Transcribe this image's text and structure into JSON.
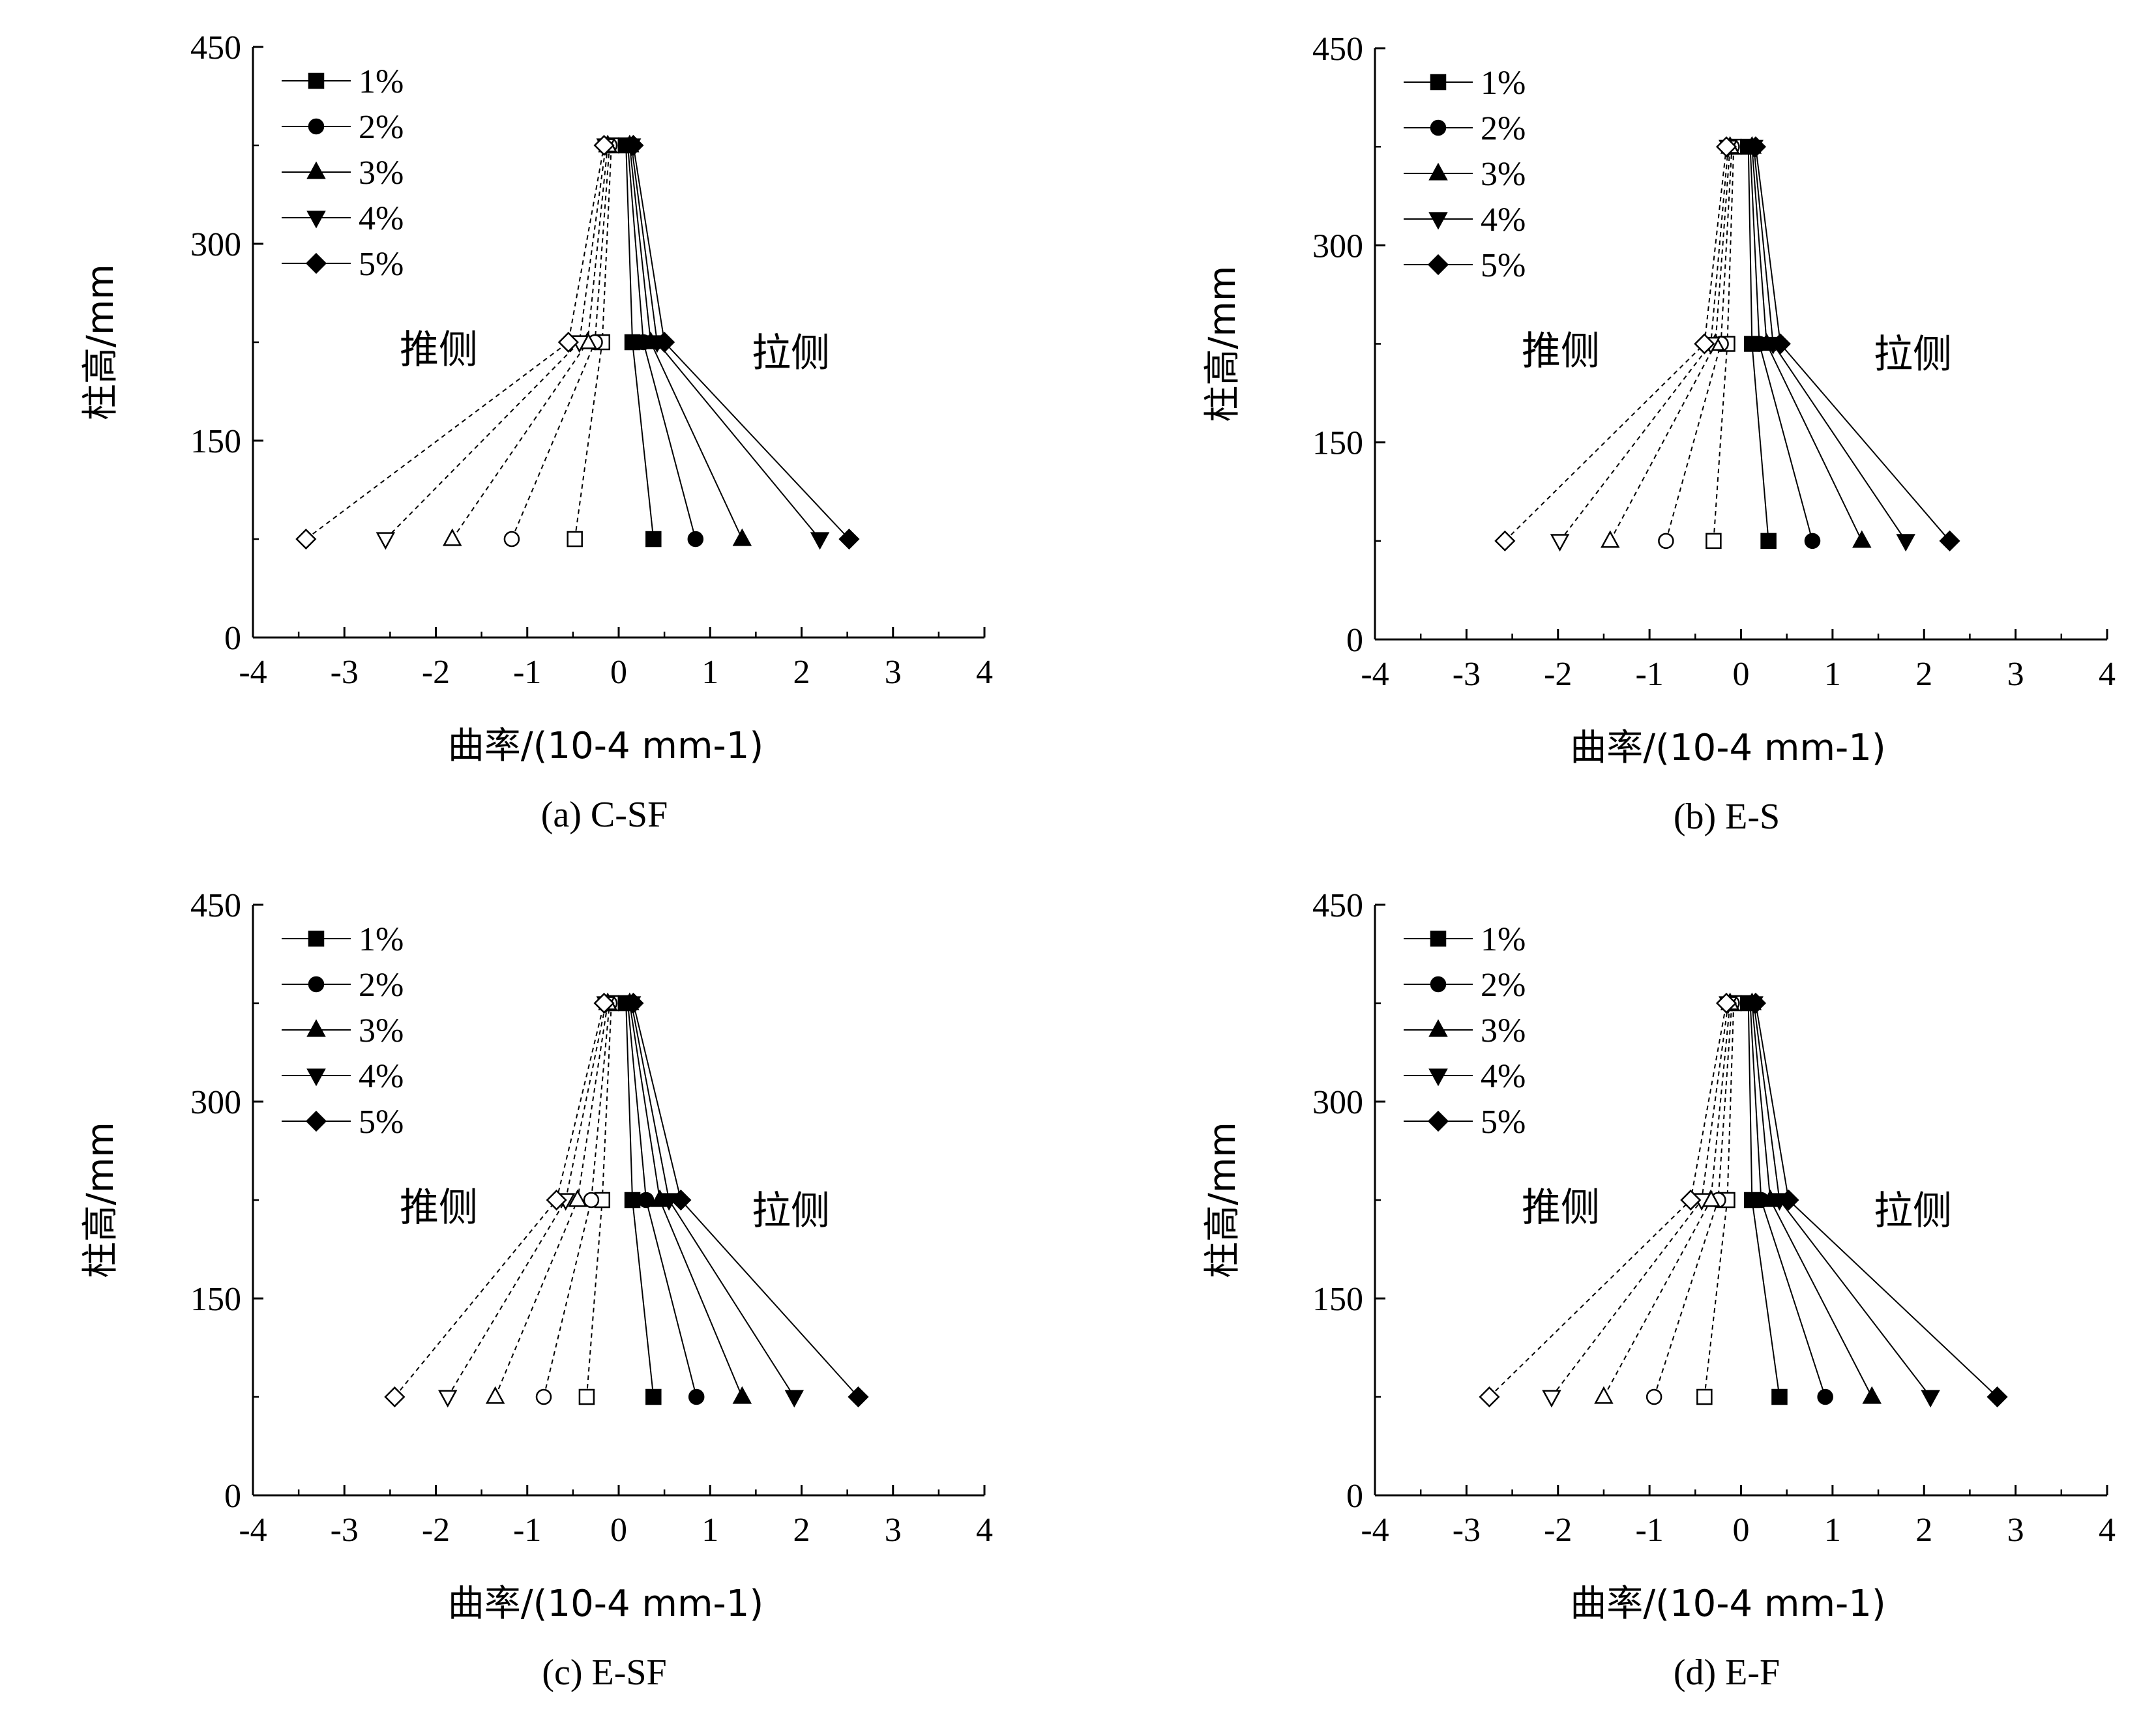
{
  "chart_data": [
    {
      "type": "line",
      "caption": "(a) C-SF",
      "xlabel": "曲率/(10-4 mm-1)",
      "ylabel": "柱高/mm",
      "xlim": [
        -4,
        4
      ],
      "ylim": [
        0,
        450
      ],
      "xticks": [
        -4,
        -3,
        -2,
        -1,
        0,
        1,
        2,
        3,
        4
      ],
      "yticks": [
        0,
        150,
        300,
        450
      ],
      "annotations": {
        "push": "推侧",
        "pull": "拉侧"
      },
      "legend": {
        "position": "top-left"
      },
      "series": [
        {
          "name": "1%",
          "marker": "square",
          "y": [
            75,
            225,
            375
          ],
          "pull": [
            0.38,
            0.15,
            0.08
          ],
          "push": [
            -0.48,
            -0.18,
            -0.08
          ]
        },
        {
          "name": "2%",
          "marker": "circle",
          "y": [
            75,
            225,
            375
          ],
          "pull": [
            0.84,
            0.27,
            0.1
          ],
          "push": [
            -1.17,
            -0.26,
            -0.1
          ]
        },
        {
          "name": "3%",
          "marker": "triangle-up",
          "y": [
            75,
            225,
            375
          ],
          "pull": [
            1.35,
            0.35,
            0.12
          ],
          "push": [
            -1.82,
            -0.34,
            -0.12
          ]
        },
        {
          "name": "4%",
          "marker": "triangle-down",
          "y": [
            75,
            225,
            375
          ],
          "pull": [
            2.2,
            0.42,
            0.14
          ],
          "push": [
            -2.55,
            -0.43,
            -0.14
          ]
        },
        {
          "name": "5%",
          "marker": "diamond",
          "y": [
            75,
            225,
            375
          ],
          "pull": [
            2.52,
            0.5,
            0.16
          ],
          "push": [
            -3.42,
            -0.55,
            -0.16
          ]
        }
      ]
    },
    {
      "type": "line",
      "caption": "(b) E-S",
      "xlabel": "曲率/(10-4 mm-1)",
      "ylabel": "柱高/mm",
      "xlim": [
        -4,
        4
      ],
      "ylim": [
        0,
        450
      ],
      "xticks": [
        -4,
        -3,
        -2,
        -1,
        0,
        1,
        2,
        3,
        4
      ],
      "yticks": [
        0,
        150,
        300,
        450
      ],
      "annotations": {
        "push": "推侧",
        "pull": "拉侧"
      },
      "legend": {
        "position": "top-left"
      },
      "series": [
        {
          "name": "1%",
          "marker": "square",
          "y": [
            75,
            225,
            375
          ],
          "pull": [
            0.3,
            0.12,
            0.08
          ],
          "push": [
            -0.3,
            -0.15,
            -0.08
          ]
        },
        {
          "name": "2%",
          "marker": "circle",
          "y": [
            75,
            225,
            375
          ],
          "pull": [
            0.78,
            0.2,
            0.1
          ],
          "push": [
            -0.82,
            -0.22,
            -0.1
          ]
        },
        {
          "name": "3%",
          "marker": "triangle-up",
          "y": [
            75,
            225,
            375
          ],
          "pull": [
            1.32,
            0.28,
            0.12
          ],
          "push": [
            -1.43,
            -0.28,
            -0.12
          ]
        },
        {
          "name": "4%",
          "marker": "triangle-down",
          "y": [
            75,
            225,
            375
          ],
          "pull": [
            1.8,
            0.35,
            0.14
          ],
          "push": [
            -1.98,
            -0.33,
            -0.14
          ]
        },
        {
          "name": "5%",
          "marker": "diamond",
          "y": [
            75,
            225,
            375
          ],
          "pull": [
            2.28,
            0.43,
            0.16
          ],
          "push": [
            -2.58,
            -0.4,
            -0.16
          ]
        }
      ]
    },
    {
      "type": "line",
      "caption": "(c) E-SF",
      "xlabel": "曲率/(10-4 mm-1)",
      "ylabel": "柱高/mm",
      "xlim": [
        -4,
        4
      ],
      "ylim": [
        0,
        450
      ],
      "xticks": [
        -4,
        -3,
        -2,
        -1,
        0,
        1,
        2,
        3,
        4
      ],
      "yticks": [
        0,
        150,
        300,
        450
      ],
      "annotations": {
        "push": "推侧",
        "pull": "拉侧"
      },
      "legend": {
        "position": "top-left"
      },
      "series": [
        {
          "name": "1%",
          "marker": "square",
          "y": [
            75,
            225,
            375
          ],
          "pull": [
            0.38,
            0.15,
            0.08
          ],
          "push": [
            -0.35,
            -0.18,
            -0.08
          ]
        },
        {
          "name": "2%",
          "marker": "circle",
          "y": [
            75,
            225,
            375
          ],
          "pull": [
            0.85,
            0.3,
            0.1
          ],
          "push": [
            -0.82,
            -0.3,
            -0.1
          ]
        },
        {
          "name": "3%",
          "marker": "triangle-up",
          "y": [
            75,
            225,
            375
          ],
          "pull": [
            1.35,
            0.45,
            0.12
          ],
          "push": [
            -1.35,
            -0.45,
            -0.12
          ]
        },
        {
          "name": "4%",
          "marker": "triangle-down",
          "y": [
            75,
            225,
            375
          ],
          "pull": [
            1.92,
            0.55,
            0.14
          ],
          "push": [
            -1.87,
            -0.58,
            -0.14
          ]
        },
        {
          "name": "5%",
          "marker": "diamond",
          "y": [
            75,
            225,
            375
          ],
          "pull": [
            2.62,
            0.68,
            0.16
          ],
          "push": [
            -2.45,
            -0.68,
            -0.16
          ]
        }
      ]
    },
    {
      "type": "line",
      "caption": "(d) E-F",
      "xlabel": "曲率/(10-4 mm-1)",
      "ylabel": "柱高/mm",
      "xlim": [
        -4,
        4
      ],
      "ylim": [
        0,
        450
      ],
      "xticks": [
        -4,
        -3,
        -2,
        -1,
        0,
        1,
        2,
        3,
        4
      ],
      "yticks": [
        0,
        150,
        300,
        450
      ],
      "annotations": {
        "push": "推侧",
        "pull": "拉侧"
      },
      "legend": {
        "position": "top-left"
      },
      "series": [
        {
          "name": "1%",
          "marker": "square",
          "y": [
            75,
            225,
            375
          ],
          "pull": [
            0.42,
            0.12,
            0.08
          ],
          "push": [
            -0.4,
            -0.15,
            -0.08
          ]
        },
        {
          "name": "2%",
          "marker": "circle",
          "y": [
            75,
            225,
            375
          ],
          "pull": [
            0.92,
            0.22,
            0.1
          ],
          "push": [
            -0.95,
            -0.25,
            -0.1
          ]
        },
        {
          "name": "3%",
          "marker": "triangle-up",
          "y": [
            75,
            225,
            375
          ],
          "pull": [
            1.43,
            0.32,
            0.12
          ],
          "push": [
            -1.5,
            -0.33,
            -0.12
          ]
        },
        {
          "name": "4%",
          "marker": "triangle-down",
          "y": [
            75,
            225,
            375
          ],
          "pull": [
            2.07,
            0.42,
            0.14
          ],
          "push": [
            -2.07,
            -0.43,
            -0.14
          ]
        },
        {
          "name": "5%",
          "marker": "diamond",
          "y": [
            75,
            225,
            375
          ],
          "pull": [
            2.8,
            0.52,
            0.16
          ],
          "push": [
            -2.75,
            -0.55,
            -0.16
          ]
        }
      ]
    }
  ]
}
